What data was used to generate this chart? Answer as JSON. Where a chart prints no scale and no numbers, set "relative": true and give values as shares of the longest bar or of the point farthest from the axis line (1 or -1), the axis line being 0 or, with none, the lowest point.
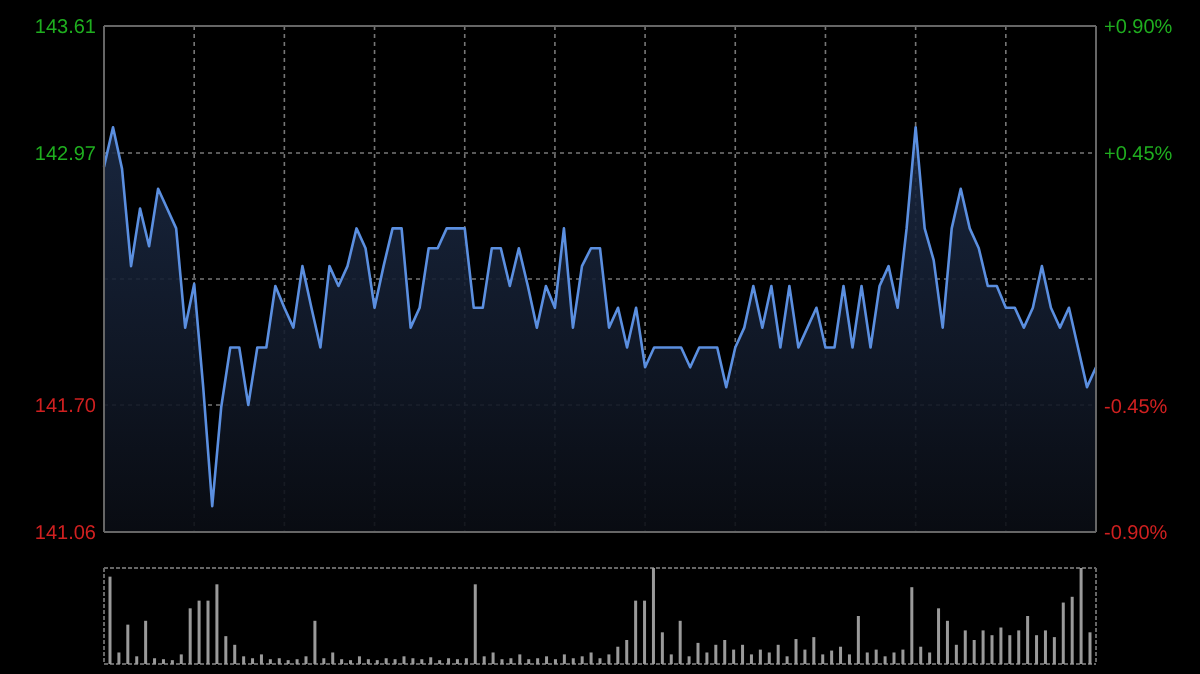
{
  "chart_data": [
    {
      "type": "area",
      "categories": [
        null,
        null,
        null,
        null,
        null,
        null,
        null,
        null,
        null,
        null,
        null,
        null,
        null,
        null,
        null,
        null,
        null,
        null,
        null,
        null,
        null,
        null,
        null,
        null,
        null,
        null,
        null,
        null,
        null,
        null,
        null,
        null,
        null,
        null,
        null,
        null,
        null,
        null,
        null,
        null,
        null,
        null,
        null,
        null,
        null,
        null,
        null,
        null,
        null,
        null,
        null,
        null,
        null,
        null,
        null,
        null,
        null,
        null,
        null,
        null,
        null,
        null,
        null,
        null,
        null,
        null,
        null,
        null,
        null,
        null,
        null,
        null,
        null,
        null,
        null,
        null,
        null,
        null,
        null,
        null,
        null,
        null,
        null,
        null,
        null,
        null,
        null,
        null,
        null,
        null,
        null,
        null,
        null,
        null,
        null,
        null,
        null,
        null,
        null,
        null,
        null,
        null,
        null,
        null,
        null,
        null,
        null,
        null,
        null,
        null,
        null
      ],
      "ylim": [
        141.06,
        143.61
      ],
      "yticks": [
        141.06,
        {
          "value": 141.7,
          "label": "141.70"
        },
        {
          "value": 142.335,
          "label": null
        },
        142.97,
        143.61
      ],
      "y2lim": [
        -0.9,
        0.9
      ],
      "y2ticks": [
        {
          "value": -0.9,
          "label": "-0.90%"
        },
        {
          "value": -0.45,
          "label": "-0.45%"
        },
        {
          "value": 0.45,
          "label": "+0.45%"
        },
        {
          "value": 0.9,
          "label": "+0.90%"
        }
      ],
      "grid": true,
      "series": [
        {
          "color": "#5b8fe0",
          "values": [
            142.9,
            143.1,
            142.89,
            142.4,
            142.69,
            142.5,
            142.79,
            142.69,
            142.59,
            142.09,
            142.31,
            141.79,
            141.19,
            141.69,
            141.99,
            141.99,
            141.7,
            141.99,
            141.99,
            142.3,
            142.19,
            142.09,
            142.4,
            142.19,
            141.99,
            142.4,
            142.3,
            142.4,
            142.59,
            142.49,
            142.19,
            142.4,
            142.59,
            142.59,
            142.09,
            142.19,
            142.49,
            142.49,
            142.59,
            142.59,
            142.59,
            142.19,
            142.19,
            142.49,
            142.49,
            142.3,
            142.49,
            142.3,
            142.09,
            142.3,
            142.19,
            142.59,
            142.09,
            142.4,
            142.49,
            142.49,
            142.09,
            142.19,
            141.99,
            142.19,
            141.89,
            141.99,
            141.99,
            141.99,
            141.99,
            141.89,
            141.99,
            141.99,
            141.99,
            141.79,
            141.99,
            142.09,
            142.3,
            142.09,
            142.3,
            141.99,
            142.3,
            141.99,
            142.09,
            142.19,
            141.99,
            141.99,
            142.3,
            141.99,
            142.3,
            141.99,
            142.3,
            142.4,
            142.19,
            142.59,
            143.1,
            142.59,
            142.43,
            142.09,
            142.59,
            142.79,
            142.59,
            142.49,
            142.3,
            142.3,
            142.19,
            142.19,
            142.09,
            142.19,
            142.4,
            142.19,
            142.09,
            142.19,
            141.99,
            141.79,
            141.89
          ]
        }
      ]
    },
    {
      "type": "bar",
      "relative": true,
      "categories": [
        null,
        null,
        null,
        null,
        null,
        null,
        null,
        null,
        null,
        null,
        null,
        null,
        null,
        null,
        null,
        null,
        null,
        null,
        null,
        null,
        null,
        null,
        null,
        null,
        null,
        null,
        null,
        null,
        null,
        null,
        null,
        null,
        null,
        null,
        null,
        null,
        null,
        null,
        null,
        null,
        null,
        null,
        null,
        null,
        null,
        null,
        null,
        null,
        null,
        null,
        null,
        null,
        null,
        null,
        null,
        null,
        null,
        null,
        null,
        null,
        null,
        null,
        null,
        null,
        null,
        null,
        null,
        null,
        null,
        null,
        null,
        null,
        null,
        null,
        null,
        null,
        null,
        null,
        null,
        null,
        null,
        null,
        null,
        null,
        null,
        null,
        null,
        null,
        null,
        null,
        null,
        null,
        null,
        null,
        null,
        null,
        null,
        null,
        null,
        null,
        null,
        null,
        null,
        null,
        null,
        null,
        null,
        null,
        null,
        null,
        null
      ],
      "series": [
        {
          "color": "#9a9a9a",
          "values": [
            0.91,
            0.12,
            0.41,
            0.08,
            0.45,
            0.06,
            0.05,
            0.04,
            0.1,
            0.58,
            0.66,
            0.66,
            0.83,
            0.29,
            0.2,
            0.08,
            0.06,
            0.1,
            0.05,
            0.06,
            0.04,
            0.05,
            0.08,
            0.45,
            0.06,
            0.12,
            0.05,
            0.04,
            0.08,
            0.05,
            0.04,
            0.06,
            0.05,
            0.08,
            0.06,
            0.05,
            0.07,
            0.04,
            0.06,
            0.05,
            0.06,
            0.83,
            0.08,
            0.12,
            0.05,
            0.06,
            0.1,
            0.05,
            0.06,
            0.08,
            0.05,
            0.1,
            0.06,
            0.08,
            0.12,
            0.06,
            0.1,
            0.18,
            0.25,
            0.66,
            0.66,
            1.0,
            0.33,
            0.1,
            0.45,
            0.08,
            0.22,
            0.12,
            0.2,
            0.25,
            0.15,
            0.2,
            0.1,
            0.15,
            0.12,
            0.2,
            0.08,
            0.26,
            0.15,
            0.28,
            0.1,
            0.14,
            0.18,
            0.1,
            0.5,
            0.12,
            0.15,
            0.08,
            0.12,
            0.15,
            0.8,
            0.18,
            0.12,
            0.58,
            0.45,
            0.2,
            0.35,
            0.25,
            0.35,
            0.3,
            0.38,
            0.3,
            0.35,
            0.5,
            0.3,
            0.35,
            0.28,
            0.64,
            0.7,
            1.0,
            0.33
          ]
        }
      ]
    }
  ]
}
